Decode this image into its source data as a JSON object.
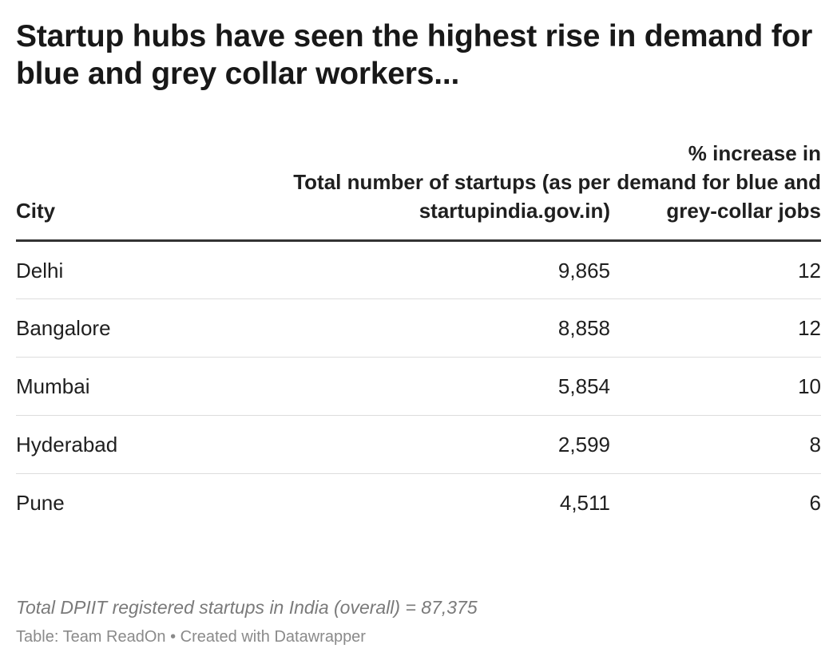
{
  "chart_data": {
    "type": "table",
    "title": "Startup hubs have seen the highest rise in demand for blue and grey collar workers...",
    "columns": [
      "City",
      "Total number of startups (as per startupindia.gov.in)",
      "% increase in demand for blue and grey-collar jobs"
    ],
    "rows": [
      {
        "city": "Delhi",
        "startups": "9,865",
        "increase": "12"
      },
      {
        "city": "Bangalore",
        "startups": "8,858",
        "increase": "12"
      },
      {
        "city": "Mumbai",
        "startups": "5,854",
        "increase": "10"
      },
      {
        "city": "Hyderabad",
        "startups": "2,599",
        "increase": "8"
      },
      {
        "city": "Pune",
        "startups": "4,511",
        "increase": "6"
      }
    ],
    "note": "Total DPIIT registered startups in India (overall) = 87,375",
    "source": "Table: Team ReadOn • Created with Datawrapper"
  }
}
